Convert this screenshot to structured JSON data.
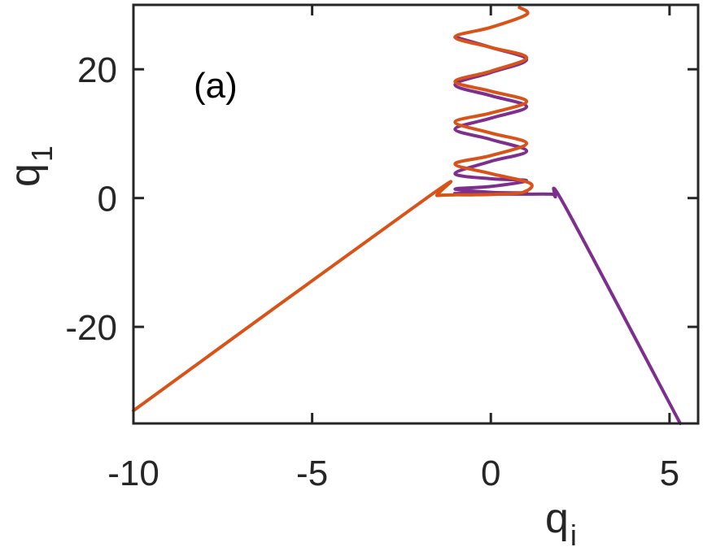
{
  "chart_data": {
    "type": "line",
    "panel_label": "(a)",
    "xlabel": "q",
    "xlabel_sub": "i",
    "ylabel": "q",
    "ylabel_sub": "1",
    "xlim": [
      -10,
      5.8
    ],
    "ylim": [
      -35,
      30
    ],
    "xticks": [
      -10,
      -5,
      0,
      5
    ],
    "xtick_labels": [
      "-10",
      "-5",
      "0",
      "5"
    ],
    "yticks": [
      -20,
      0,
      20
    ],
    "ytick_labels": [
      "-20",
      "0",
      "20"
    ],
    "grid": false,
    "legend": "none",
    "series": [
      {
        "color": "#7E2F8E",
        "x": [
          -1.0,
          0.0,
          1.0,
          0.0,
          -1.0,
          0.0,
          1.0,
          0.0,
          -1.0,
          0.0,
          1.0,
          0.0,
          -1.0,
          0.0,
          1.0,
          0.0,
          -1.0,
          0.0,
          1.0,
          0.0,
          -1.0,
          -0.5,
          0.6,
          1.7,
          1.8,
          2.1,
          5.3
        ],
        "y": [
          25.0,
          23.4,
          21.5,
          19.5,
          17.6,
          15.9,
          14.2,
          12.4,
          10.7,
          9.1,
          7.3,
          5.7,
          3.8,
          3.0,
          2.7,
          1.8,
          1.4,
          0.9,
          0.8,
          0.8,
          0.7,
          0.7,
          0.6,
          0.6,
          0.2,
          -1.5,
          -35.0
        ]
      },
      {
        "color": "#D95319",
        "x": [
          -10.0,
          -1.8,
          -1.5,
          -1.0,
          -0.5,
          0.2,
          0.9,
          1.1,
          0.0,
          -1.0,
          0.0,
          1.0,
          0.0,
          -1.0,
          0.0,
          1.0,
          0.0,
          -1.0,
          0.0,
          1.0,
          0.0,
          -1.0,
          0.0,
          1.0,
          0.8
        ],
        "y": [
          -33.0,
          0.0,
          0.4,
          0.5,
          0.5,
          0.6,
          0.9,
          2.3,
          3.8,
          5.3,
          6.6,
          8.5,
          10.1,
          11.8,
          13.2,
          15.0,
          16.6,
          18.1,
          19.7,
          21.8,
          23.4,
          25.0,
          26.5,
          28.5,
          29.6
        ]
      }
    ]
  }
}
